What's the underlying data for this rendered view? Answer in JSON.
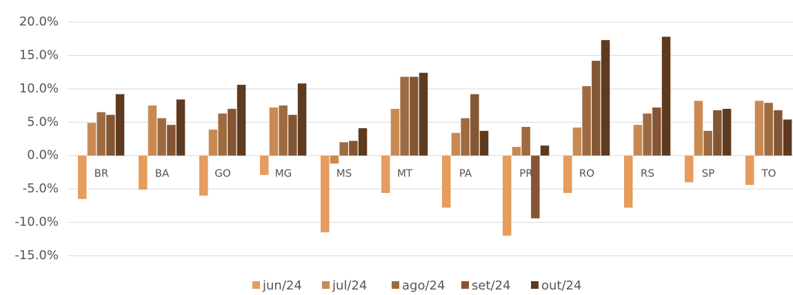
{
  "chart_data": {
    "type": "bar",
    "categories": [
      "BR",
      "BA",
      "GO",
      "MG",
      "MS",
      "MT",
      "PA",
      "PR",
      "RO",
      "RS",
      "SP",
      "TO"
    ],
    "series": [
      {
        "name": "jun/24",
        "color": "#e59c5c",
        "values": [
          -6.5,
          -5.1,
          -6.0,
          -2.9,
          -11.5,
          -5.6,
          -7.8,
          -12.0,
          -5.6,
          -7.8,
          -4.0,
          -4.4
        ]
      },
      {
        "name": "jul/24",
        "color": "#c98a52",
        "values": [
          4.9,
          7.5,
          3.9,
          7.2,
          -1.2,
          7.0,
          3.4,
          1.3,
          4.2,
          4.6,
          8.2,
          8.2
        ]
      },
      {
        "name": "ago/24",
        "color": "#9e6b40",
        "values": [
          6.5,
          5.6,
          6.3,
          7.5,
          2.0,
          11.8,
          5.6,
          4.3,
          10.4,
          6.3,
          3.7,
          7.9
        ]
      },
      {
        "name": "set/24",
        "color": "#855633",
        "values": [
          6.1,
          4.6,
          7.0,
          6.1,
          2.2,
          11.8,
          9.2,
          -9.4,
          14.2,
          7.2,
          6.8,
          6.8
        ]
      },
      {
        "name": "out/24",
        "color": "#5e3a1f",
        "values": [
          9.2,
          8.4,
          10.6,
          10.8,
          4.1,
          12.4,
          3.7,
          1.5,
          17.3,
          17.8,
          7.0,
          5.4
        ]
      }
    ],
    "ylim": [
      -15,
      20
    ],
    "yticks": [
      {
        "value": -15,
        "label": "-15.0%"
      },
      {
        "value": -10,
        "label": "-10.0%"
      },
      {
        "value": -5,
        "label": "-5.0%"
      },
      {
        "value": 0,
        "label": "0.0%"
      },
      {
        "value": 5,
        "label": "5.0%"
      },
      {
        "value": 10,
        "label": "10.0%"
      },
      {
        "value": 15,
        "label": "15.0%"
      },
      {
        "value": 20,
        "label": "20.0%"
      }
    ],
    "grid": true,
    "legend": "bottom"
  }
}
